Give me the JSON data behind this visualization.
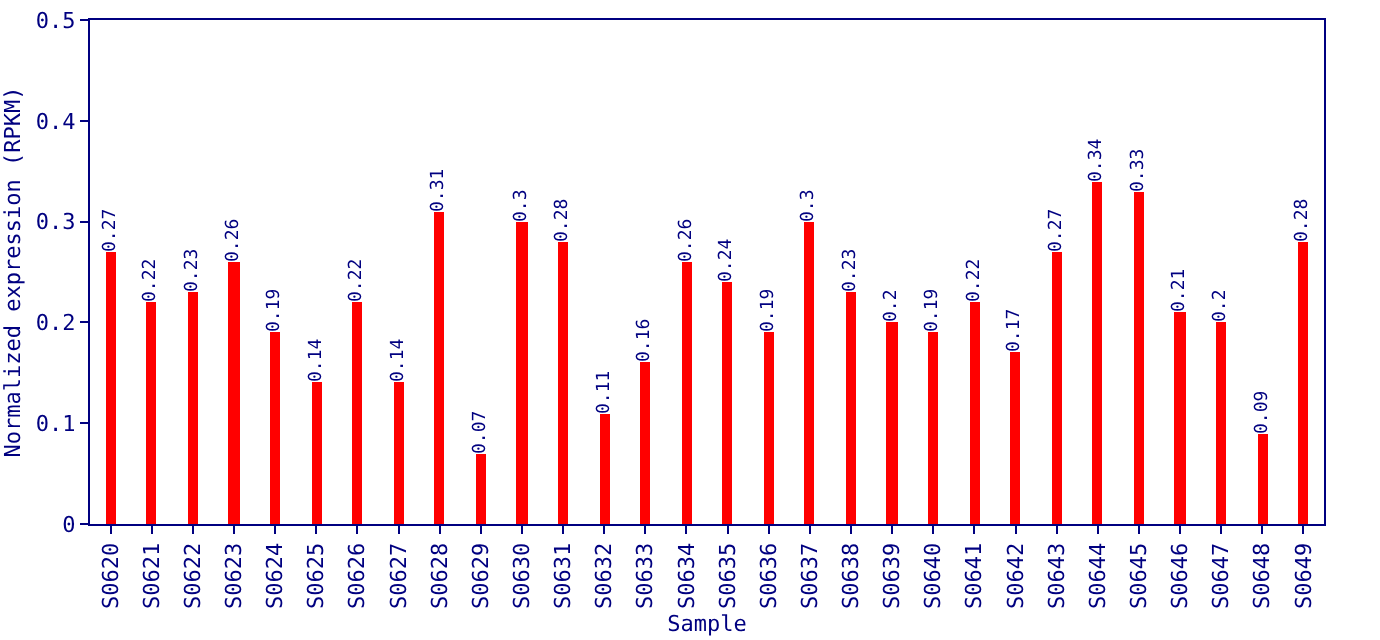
{
  "chart_data": {
    "type": "bar",
    "xlabel": "Sample",
    "ylabel": "Normalized expression (RPKM)",
    "categories": [
      "S0620",
      "S0621",
      "S0622",
      "S0623",
      "S0624",
      "S0625",
      "S0626",
      "S0627",
      "S0628",
      "S0629",
      "S0630",
      "S0631",
      "S0632",
      "S0633",
      "S0634",
      "S0635",
      "S0636",
      "S0637",
      "S0638",
      "S0639",
      "S0640",
      "S0641",
      "S0642",
      "S0643",
      "S0644",
      "S0645",
      "S0646",
      "S0647",
      "S0648",
      "S0649"
    ],
    "values": [
      0.27,
      0.22,
      0.23,
      0.26,
      0.19,
      0.14,
      0.22,
      0.14,
      0.31,
      0.07,
      0.3,
      0.28,
      0.11,
      0.16,
      0.26,
      0.24,
      0.19,
      0.3,
      0.23,
      0.2,
      0.19,
      0.22,
      0.17,
      0.27,
      0.34,
      0.33,
      0.21,
      0.2,
      0.09,
      0.28
    ],
    "color": "#ff0000",
    "ylim": [
      0,
      0.5
    ],
    "yticks": [
      0,
      0.1,
      0.2,
      0.3,
      0.4,
      0.5
    ],
    "grid": false,
    "data_labels": true
  }
}
